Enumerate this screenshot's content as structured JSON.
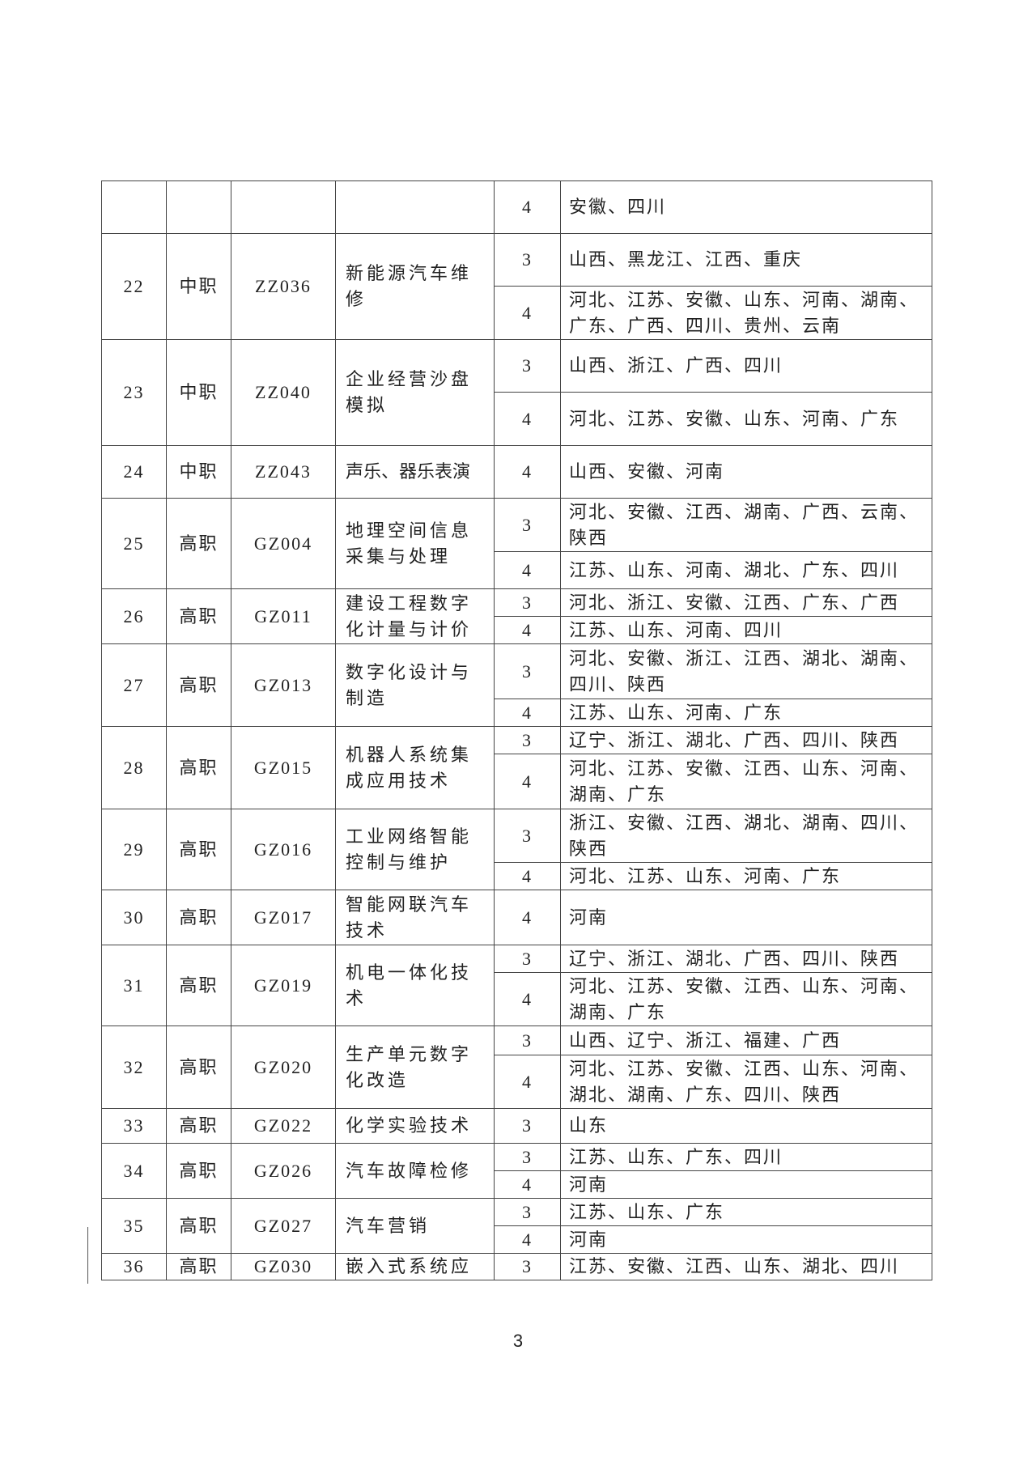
{
  "table": {
    "rows": [
      {
        "no": "",
        "level": "",
        "code": "",
        "name": "",
        "entries": [
          {
            "tier": "4",
            "provinces": "安徽、四川"
          }
        ]
      },
      {
        "no": "22",
        "level": "中职",
        "code": "ZZ036",
        "name": "新能源汽车维修",
        "entries": [
          {
            "tier": "3",
            "provinces": "山西、黑龙江、江西、重庆"
          },
          {
            "tier": "4",
            "provinces": "河北、江苏、安徽、山东、河南、湖南、广东、广西、四川、贵州、云南"
          }
        ]
      },
      {
        "no": "23",
        "level": "中职",
        "code": "ZZ040",
        "name": "企业经营沙盘模拟",
        "entries": [
          {
            "tier": "3",
            "provinces": "山西、浙江、广西、四川"
          },
          {
            "tier": "4",
            "provinces": "河北、江苏、安徽、山东、河南、广东"
          }
        ]
      },
      {
        "no": "24",
        "level": "中职",
        "code": "ZZ043",
        "name": "声乐、器乐表演",
        "entries": [
          {
            "tier": "4",
            "provinces": "山西、安徽、河南"
          }
        ]
      },
      {
        "no": "25",
        "level": "高职",
        "code": "GZ004",
        "name": "地理空间信息采集与处理",
        "entries": [
          {
            "tier": "3",
            "provinces": "河北、安徽、江西、湖南、广西、云南、陕西"
          },
          {
            "tier": "4",
            "provinces": "江苏、山东、河南、湖北、广东、四川"
          }
        ]
      },
      {
        "no": "26",
        "level": "高职",
        "code": "GZ011",
        "name": "建设工程数字化计量与计价",
        "entries": [
          {
            "tier": "3",
            "provinces": "河北、浙江、安徽、江西、广东、广西"
          },
          {
            "tier": "4",
            "provinces": "江苏、山东、河南、四川"
          }
        ]
      },
      {
        "no": "27",
        "level": "高职",
        "code": "GZ013",
        "name": "数字化设计与制造",
        "entries": [
          {
            "tier": "3",
            "provinces": "河北、安徽、浙江、江西、湖北、湖南、四川、陕西"
          },
          {
            "tier": "4",
            "provinces": "江苏、山东、河南、广东"
          }
        ]
      },
      {
        "no": "28",
        "level": "高职",
        "code": "GZ015",
        "name": "机器人系统集成应用技术",
        "entries": [
          {
            "tier": "3",
            "provinces": "辽宁、浙江、湖北、广西、四川、陕西"
          },
          {
            "tier": "4",
            "provinces": "河北、江苏、安徽、江西、山东、河南、湖南、广东"
          }
        ]
      },
      {
        "no": "29",
        "level": "高职",
        "code": "GZ016",
        "name": "工业网络智能控制与维护",
        "entries": [
          {
            "tier": "3",
            "provinces": "浙江、安徽、江西、湖北、湖南、四川、陕西"
          },
          {
            "tier": "4",
            "provinces": "河北、江苏、山东、河南、广东"
          }
        ]
      },
      {
        "no": "30",
        "level": "高职",
        "code": "GZ017",
        "name": "智能网联汽车技术",
        "entries": [
          {
            "tier": "4",
            "provinces": "河南"
          }
        ]
      },
      {
        "no": "31",
        "level": "高职",
        "code": "GZ019",
        "name": "机电一体化技术",
        "entries": [
          {
            "tier": "3",
            "provinces": "辽宁、浙江、湖北、广西、四川、陕西"
          },
          {
            "tier": "4",
            "provinces": "河北、江苏、安徽、江西、山东、河南、湖南、广东"
          }
        ]
      },
      {
        "no": "32",
        "level": "高职",
        "code": "GZ020",
        "name": "生产单元数字化改造",
        "entries": [
          {
            "tier": "3",
            "provinces": "山西、辽宁、浙江、福建、广西"
          },
          {
            "tier": "4",
            "provinces": "河北、江苏、安徽、江西、山东、河南、湖北、湖南、广东、四川、陕西"
          }
        ]
      },
      {
        "no": "33",
        "level": "高职",
        "code": "GZ022",
        "name": "化学实验技术",
        "entries": [
          {
            "tier": "3",
            "provinces": "山东"
          }
        ]
      },
      {
        "no": "34",
        "level": "高职",
        "code": "GZ026",
        "name": "汽车故障检修",
        "entries": [
          {
            "tier": "3",
            "provinces": "江苏、山东、广东、四川"
          },
          {
            "tier": "4",
            "provinces": "河南"
          }
        ]
      },
      {
        "no": "35",
        "level": "高职",
        "code": "GZ027",
        "name": "汽车营销",
        "entries": [
          {
            "tier": "3",
            "provinces": "江苏、山东、广东"
          },
          {
            "tier": "4",
            "provinces": "河南"
          }
        ]
      },
      {
        "no": "36",
        "level": "高职",
        "code": "GZ030",
        "name": "嵌入式系统应",
        "entries": [
          {
            "tier": "3",
            "provinces": "江苏、安徽、江西、山东、湖北、四川"
          }
        ]
      }
    ]
  },
  "page_number": "3"
}
